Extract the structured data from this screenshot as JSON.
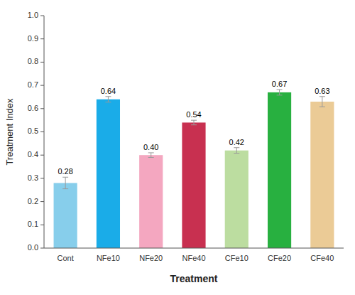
{
  "chart_data": {
    "type": "bar",
    "categories": [
      "Cont",
      "NFe10",
      "NFe20",
      "NFe40",
      "CFe10",
      "CFe20",
      "CFe40"
    ],
    "values": [
      0.28,
      0.64,
      0.4,
      0.54,
      0.42,
      0.67,
      0.63
    ],
    "value_labels": [
      "0.28",
      "0.64",
      "0.40",
      "0.54",
      "0.42",
      "0.67",
      "0.63"
    ],
    "errors": [
      0.025,
      0.012,
      0.01,
      0.01,
      0.012,
      0.012,
      0.022
    ],
    "colors": [
      "#87CEEB",
      "#1AACE8",
      "#F4A7C0",
      "#C83050",
      "#BCDDA0",
      "#28B040",
      "#EBCB96"
    ],
    "xlabel": "Treatment",
    "ylabel": "Treatment Index",
    "ylim": [
      0.0,
      1.0
    ],
    "yticks": [
      {
        "value": 0,
        "label": "0.0"
      },
      0.1,
      0.2,
      0.3,
      0.4,
      0.5,
      0.6,
      0.7,
      0.8,
      0.9,
      {
        "value": 1,
        "label": "1.0"
      }
    ],
    "grid": false,
    "data_labels": true
  }
}
